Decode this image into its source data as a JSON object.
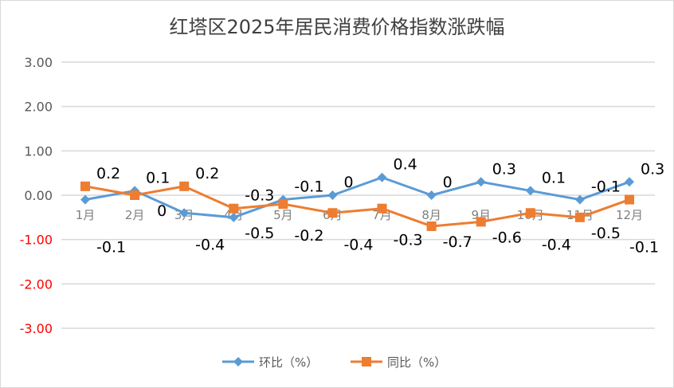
{
  "chart_data": {
    "type": "line",
    "title": "红塔区2025年居民消费价格指数涨跌幅",
    "categories": [
      "1月",
      "2月",
      "3月",
      "4月",
      "5月",
      "6月",
      "7月",
      "8月",
      "9月",
      "10月",
      "11月",
      "12月"
    ],
    "series": [
      {
        "name": "环比（%）",
        "color": "#5b9bd5",
        "marker": "diamond",
        "values": [
          -0.1,
          0.1,
          -0.4,
          -0.5,
          -0.1,
          0,
          0.4,
          0,
          0.3,
          0.1,
          -0.1,
          0.3
        ]
      },
      {
        "name": "同比（%）",
        "color": "#ed7d31",
        "marker": "square",
        "values": [
          0.2,
          0,
          0.2,
          -0.3,
          -0.2,
          -0.4,
          -0.3,
          -0.7,
          -0.6,
          -0.4,
          -0.5,
          -0.1
        ]
      }
    ],
    "ylim": [
      -3,
      3
    ],
    "yticks": [
      "3.00",
      "2.00",
      "1.00",
      "0.00",
      "-1.00",
      "-2.00",
      "-3.00"
    ],
    "ytick_values": [
      3,
      2,
      1,
      0,
      -1,
      -2,
      -3
    ],
    "negative_tick_color": "#ff0000",
    "positive_tick_color": "#595959",
    "grid": true,
    "legend": "bottom"
  }
}
